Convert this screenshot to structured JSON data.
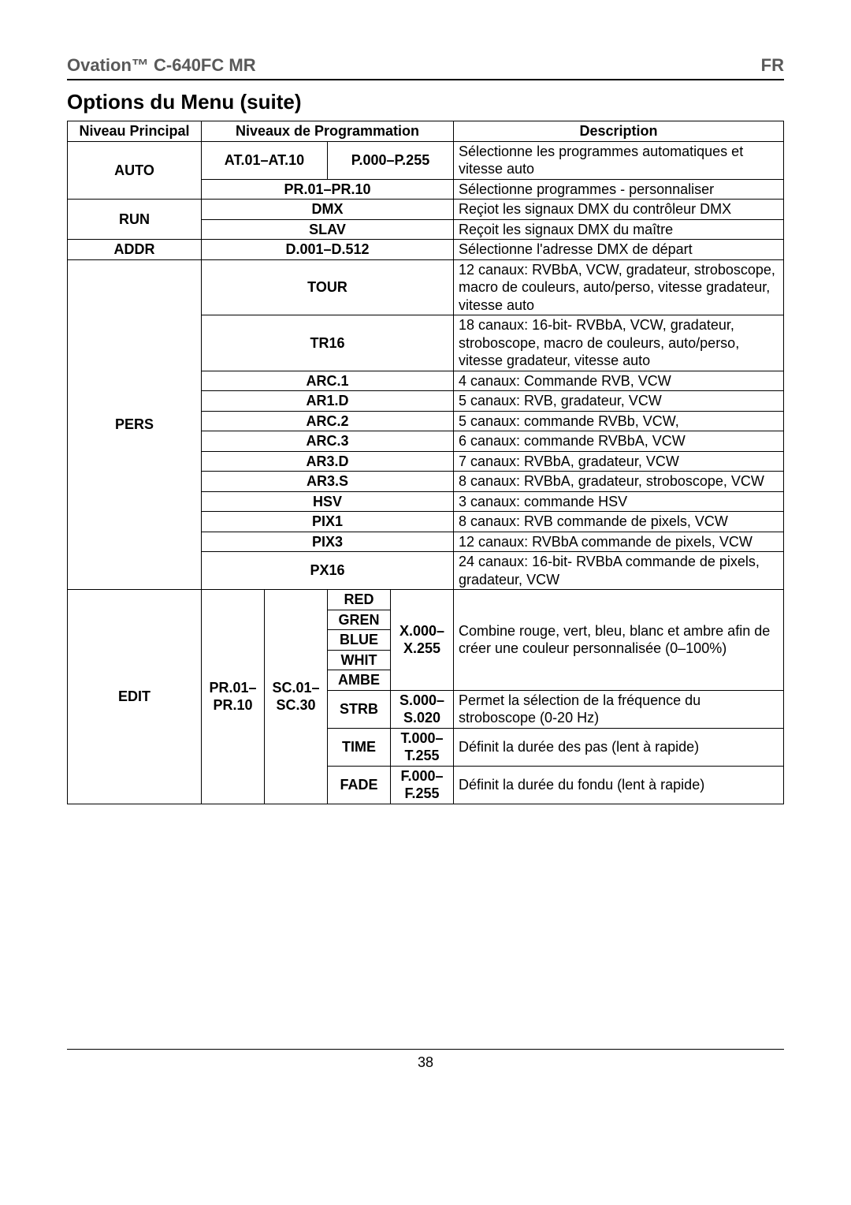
{
  "header": {
    "product": "Ovation™ C-640FC MR",
    "lang": "FR"
  },
  "section_title": "Options du Menu (suite)",
  "thead": {
    "main": "Niveau Principal",
    "prog": "Niveaux de Programmation",
    "desc": "Description"
  },
  "rows": {
    "auto": {
      "main": "AUTO",
      "r1_col1": "AT.01–AT.10",
      "r1_col2": "P.000–P.255",
      "r1_desc": "Sélectionne les programmes automatiques et vitesse auto",
      "r2_prog": "PR.01–PR.10",
      "r2_desc": "Sélectionne programmes - personnaliser"
    },
    "run": {
      "main": "RUN",
      "r1_prog": "DMX",
      "r1_desc": "Reçiot les signaux DMX du contrôleur DMX",
      "r2_prog": "SLAV",
      "r2_desc": "Reçoit les signaux DMX du maître"
    },
    "addr": {
      "main": "ADDR",
      "prog": "D.001–D.512",
      "desc": "Sélectionne l'adresse DMX de départ"
    },
    "pers": {
      "main": "PERS",
      "tour": {
        "prog": "TOUR",
        "desc": "12 canaux: RVBbA, VCW, gradateur, stroboscope, macro de couleurs, auto/perso, vitesse gradateur, vitesse auto"
      },
      "tr16": {
        "prog": "TR16",
        "desc": "18 canaux: 16-bit- RVBbA, VCW, gradateur, stroboscope, macro de couleurs, auto/perso, vitesse gradateur, vitesse auto"
      },
      "arc1": {
        "prog": "ARC.1",
        "desc": "4 canaux: Commande RVB, VCW"
      },
      "ar1d": {
        "prog": "AR1.D",
        "desc": "5 canaux: RVB, gradateur, VCW"
      },
      "arc2": {
        "prog": "ARC.2",
        "desc": "5 canaux: commande RVBb, VCW,"
      },
      "arc3": {
        "prog": "ARC.3",
        "desc": "6 canaux: commande RVBbA, VCW"
      },
      "ar3d": {
        "prog": "AR3.D",
        "desc": "7 canaux: RVBbA, gradateur, VCW"
      },
      "ar3s": {
        "prog": "AR3.S",
        "desc": "8 canaux: RVBbA, gradateur, stroboscope, VCW"
      },
      "hsv": {
        "prog": "HSV",
        "desc": "3 canaux: commande HSV"
      },
      "pix1": {
        "prog": "PIX1",
        "desc": "8 canaux: RVB commande de pixels, VCW"
      },
      "pix3": {
        "prog": "PIX3",
        "desc": "12 canaux: RVBbA commande de pixels, VCW"
      },
      "px16": {
        "prog": "PX16",
        "desc": "24 canaux: 16-bit- RVBbA commande de pixels, gradateur, VCW"
      }
    },
    "edit": {
      "main": "EDIT",
      "pr": "PR.01–PR.10",
      "sc": "SC.01–SC.30",
      "colors": {
        "range": "X.000–X.255",
        "desc": "Combine rouge, vert, bleu, blanc et ambre afin de créer une couleur personnalisée (0–100%)",
        "red": "RED",
        "gren": "GREN",
        "blue": "BLUE",
        "whit": "WHIT",
        "ambe": "AMBE"
      },
      "strb": {
        "param": "STRB",
        "range": "S.000–S.020",
        "desc": "Permet la sélection de la fréquence du stroboscope (0-20 Hz)"
      },
      "time": {
        "param": "TIME",
        "range": "T.000–T.255",
        "desc": "Définit la durée des pas (lent à rapide)"
      },
      "fade": {
        "param": "FADE",
        "range": "F.000–F.255",
        "desc": "Définit la durée du fondu (lent à rapide)"
      }
    }
  },
  "page_number": "38",
  "style": {
    "text_color": "#000000",
    "header_color": "#595959",
    "background": "#ffffff",
    "font_size_body": 18,
    "font_size_header": 22,
    "font_size_section": 26
  }
}
